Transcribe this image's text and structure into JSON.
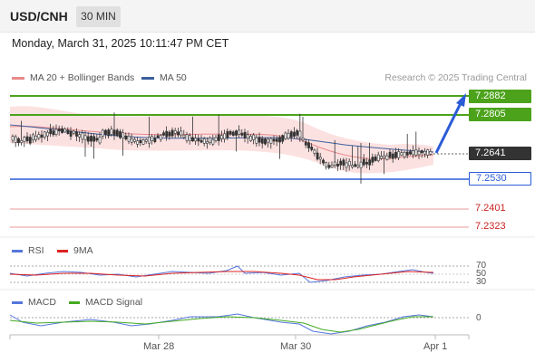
{
  "header": {
    "pair": "USD/CNH",
    "timeframe": "30 MIN"
  },
  "datetime": "Monday, March 31, 2025 10:11:47 PM CET",
  "legend": {
    "bb_label": "MA 20 + Bollinger Bands",
    "bb_color": "#e88a8a",
    "ma50_label": "MA 50",
    "ma50_color": "#3a5f9e",
    "credit": "Research © 2025 Trading Central"
  },
  "levels": {
    "r2": "7.2882",
    "r1": "7.2805",
    "current": "7.2641",
    "s1": "7.2530",
    "s2": "7.2401",
    "s3": "7.2323"
  },
  "rsi": {
    "label": "RSI",
    "color": "#5577dd",
    "ma_label": "9MA",
    "ma_color": "#dd2222",
    "levels": [
      "70",
      "50",
      "30"
    ]
  },
  "macd": {
    "label": "MACD",
    "color": "#5577dd",
    "signal_label": "MACD Signal",
    "signal_color": "#44aa22",
    "zero": "0"
  },
  "xaxis": {
    "labels": [
      "Mar 28",
      "Mar 30",
      "Apr 1"
    ]
  },
  "colors": {
    "resistance": "#4ca31b",
    "support": "#2b5bd6",
    "target": "#cc2222",
    "arrow": "#2b5bd6"
  }
}
